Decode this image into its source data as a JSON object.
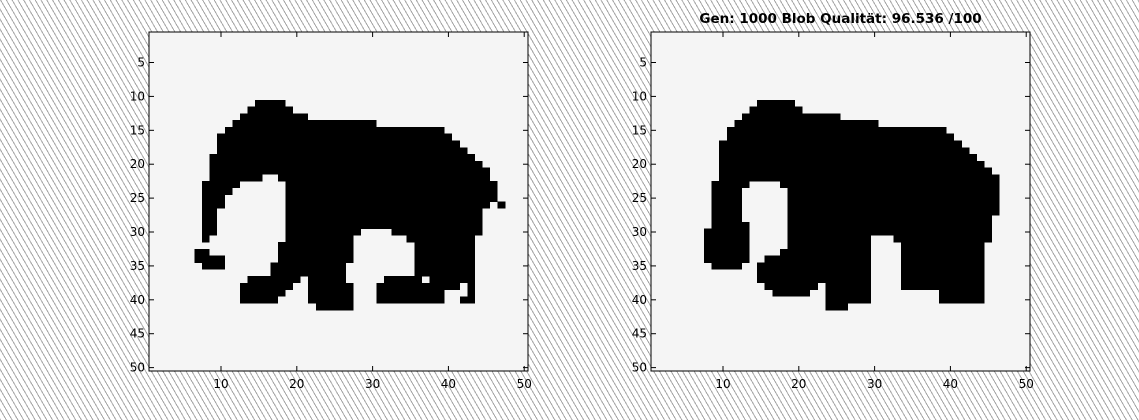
{
  "chart_data": [
    {
      "type": "heatmap",
      "title": "",
      "xlim": [
        1,
        50
      ],
      "ylim": [
        50,
        1
      ],
      "xticks": [
        10,
        20,
        30,
        40,
        50
      ],
      "yticks": [
        5,
        10,
        15,
        20,
        25,
        30,
        35,
        40,
        45,
        50
      ],
      "colors": {
        "filled": "#000000",
        "background": "#f5f5f5"
      },
      "filled_runs": [
        {
          "y": 11,
          "x": [
            [
              15,
              18
            ]
          ]
        },
        {
          "y": 12,
          "x": [
            [
              14,
              19
            ]
          ]
        },
        {
          "y": 13,
          "x": [
            [
              13,
              21
            ]
          ]
        },
        {
          "y": 14,
          "x": [
            [
              12,
              30
            ]
          ]
        },
        {
          "y": 15,
          "x": [
            [
              11,
              39
            ]
          ]
        },
        {
          "y": 16,
          "x": [
            [
              10,
              40
            ]
          ]
        },
        {
          "y": 17,
          "x": [
            [
              10,
              41
            ]
          ]
        },
        {
          "y": 18,
          "x": [
            [
              10,
              42
            ]
          ]
        },
        {
          "y": 19,
          "x": [
            [
              9,
              43
            ]
          ]
        },
        {
          "y": 20,
          "x": [
            [
              9,
              44
            ]
          ]
        },
        {
          "y": 21,
          "x": [
            [
              9,
              45
            ]
          ]
        },
        {
          "y": 22,
          "x": [
            [
              9,
              15
            ],
            [
              18,
              45
            ]
          ]
        },
        {
          "y": 23,
          "x": [
            [
              8,
              12
            ],
            [
              19,
              46
            ]
          ]
        },
        {
          "y": 24,
          "x": [
            [
              8,
              11
            ],
            [
              19,
              46
            ]
          ]
        },
        {
          "y": 25,
          "x": [
            [
              8,
              10
            ],
            [
              19,
              46
            ]
          ]
        },
        {
          "y": 26,
          "x": [
            [
              8,
              10
            ],
            [
              19,
              45
            ],
            [
              47,
              47
            ]
          ]
        },
        {
          "y": 27,
          "x": [
            [
              8,
              9
            ],
            [
              19,
              44
            ]
          ]
        },
        {
          "y": 28,
          "x": [
            [
              8,
              9
            ],
            [
              19,
              44
            ]
          ]
        },
        {
          "y": 29,
          "x": [
            [
              8,
              9
            ],
            [
              19,
              44
            ]
          ]
        },
        {
          "y": 30,
          "x": [
            [
              8,
              9
            ],
            [
              19,
              28
            ],
            [
              33,
              44
            ]
          ]
        },
        {
          "y": 31,
          "x": [
            [
              8,
              8
            ],
            [
              19,
              27
            ],
            [
              35,
              43
            ]
          ]
        },
        {
          "y": 32,
          "x": [
            [
              18,
              27
            ],
            [
              36,
              43
            ]
          ]
        },
        {
          "y": 33,
          "x": [
            [
              7,
              8
            ],
            [
              18,
              27
            ],
            [
              36,
              43
            ]
          ]
        },
        {
          "y": 34,
          "x": [
            [
              7,
              10
            ],
            [
              18,
              27
            ],
            [
              36,
              43
            ]
          ]
        },
        {
          "y": 35,
          "x": [
            [
              8,
              10
            ],
            [
              17,
              26
            ],
            [
              36,
              43
            ]
          ]
        },
        {
          "y": 36,
          "x": [
            [
              17,
              26
            ],
            [
              36,
              43
            ]
          ]
        },
        {
          "y": 37,
          "x": [
            [
              14,
              20
            ],
            [
              22,
              26
            ],
            [
              32,
              36
            ],
            [
              38,
              43
            ]
          ]
        },
        {
          "y": 38,
          "x": [
            [
              13,
              19
            ],
            [
              22,
              27
            ],
            [
              31,
              41
            ],
            [
              43,
              43
            ]
          ]
        },
        {
          "y": 39,
          "x": [
            [
              13,
              18
            ],
            [
              22,
              27
            ],
            [
              31,
              39
            ],
            [
              43,
              43
            ]
          ]
        },
        {
          "y": 40,
          "x": [
            [
              13,
              17
            ],
            [
              22,
              27
            ],
            [
              31,
              39
            ],
            [
              42,
              43
            ]
          ]
        },
        {
          "y": 41,
          "x": [
            [
              23,
              27
            ]
          ]
        }
      ]
    },
    {
      "type": "heatmap",
      "title": "Gen: 1000 Blob Qualität: 96.536 /100",
      "xlim": [
        1,
        50
      ],
      "ylim": [
        50,
        1
      ],
      "xticks": [
        10,
        20,
        30,
        40,
        50
      ],
      "yticks": [
        5,
        10,
        15,
        20,
        25,
        30,
        35,
        40,
        45,
        50
      ],
      "colors": {
        "filled": "#000000",
        "background": "#f5f5f5"
      },
      "filled_runs": [
        {
          "y": 11,
          "x": [
            [
              15,
              19
            ]
          ]
        },
        {
          "y": 12,
          "x": [
            [
              14,
              20
            ]
          ]
        },
        {
          "y": 13,
          "x": [
            [
              13,
              25
            ]
          ]
        },
        {
          "y": 14,
          "x": [
            [
              12,
              30
            ]
          ]
        },
        {
          "y": 15,
          "x": [
            [
              11,
              39
            ]
          ]
        },
        {
          "y": 16,
          "x": [
            [
              11,
              40
            ]
          ]
        },
        {
          "y": 17,
          "x": [
            [
              10,
              41
            ]
          ]
        },
        {
          "y": 18,
          "x": [
            [
              10,
              42
            ]
          ]
        },
        {
          "y": 19,
          "x": [
            [
              10,
              43
            ]
          ]
        },
        {
          "y": 20,
          "x": [
            [
              10,
              44
            ]
          ]
        },
        {
          "y": 21,
          "x": [
            [
              10,
              45
            ]
          ]
        },
        {
          "y": 22,
          "x": [
            [
              10,
              46
            ]
          ]
        },
        {
          "y": 23,
          "x": [
            [
              9,
              13
            ],
            [
              18,
              46
            ]
          ]
        },
        {
          "y": 24,
          "x": [
            [
              9,
              12
            ],
            [
              19,
              46
            ]
          ]
        },
        {
          "y": 25,
          "x": [
            [
              9,
              12
            ],
            [
              19,
              46
            ]
          ]
        },
        {
          "y": 26,
          "x": [
            [
              9,
              12
            ],
            [
              19,
              46
            ]
          ]
        },
        {
          "y": 27,
          "x": [
            [
              9,
              12
            ],
            [
              19,
              46
            ]
          ]
        },
        {
          "y": 28,
          "x": [
            [
              9,
              12
            ],
            [
              19,
              45
            ]
          ]
        },
        {
          "y": 29,
          "x": [
            [
              9,
              13
            ],
            [
              19,
              45
            ]
          ]
        },
        {
          "y": 30,
          "x": [
            [
              8,
              13
            ],
            [
              19,
              45
            ]
          ]
        },
        {
          "y": 31,
          "x": [
            [
              8,
              13
            ],
            [
              19,
              29
            ],
            [
              33,
              45
            ]
          ]
        },
        {
          "y": 32,
          "x": [
            [
              8,
              13
            ],
            [
              19,
              29
            ],
            [
              34,
              44
            ]
          ]
        },
        {
          "y": 33,
          "x": [
            [
              8,
              13
            ],
            [
              18,
              29
            ],
            [
              34,
              44
            ]
          ]
        },
        {
          "y": 34,
          "x": [
            [
              8,
              13
            ],
            [
              16,
              29
            ],
            [
              34,
              44
            ]
          ]
        },
        {
          "y": 35,
          "x": [
            [
              9,
              12
            ],
            [
              15,
              29
            ],
            [
              34,
              44
            ]
          ]
        },
        {
          "y": 36,
          "x": [
            [
              15,
              29
            ],
            [
              34,
              44
            ]
          ]
        },
        {
          "y": 37,
          "x": [
            [
              15,
              29
            ],
            [
              34,
              44
            ]
          ]
        },
        {
          "y": 38,
          "x": [
            [
              16,
              22
            ],
            [
              24,
              29
            ],
            [
              34,
              44
            ]
          ]
        },
        {
          "y": 39,
          "x": [
            [
              17,
              21
            ],
            [
              24,
              29
            ],
            [
              39,
              44
            ]
          ]
        },
        {
          "y": 40,
          "x": [
            [
              24,
              29
            ],
            [
              39,
              44
            ]
          ]
        },
        {
          "y": 41,
          "x": [
            [
              24,
              26
            ]
          ]
        }
      ]
    }
  ]
}
